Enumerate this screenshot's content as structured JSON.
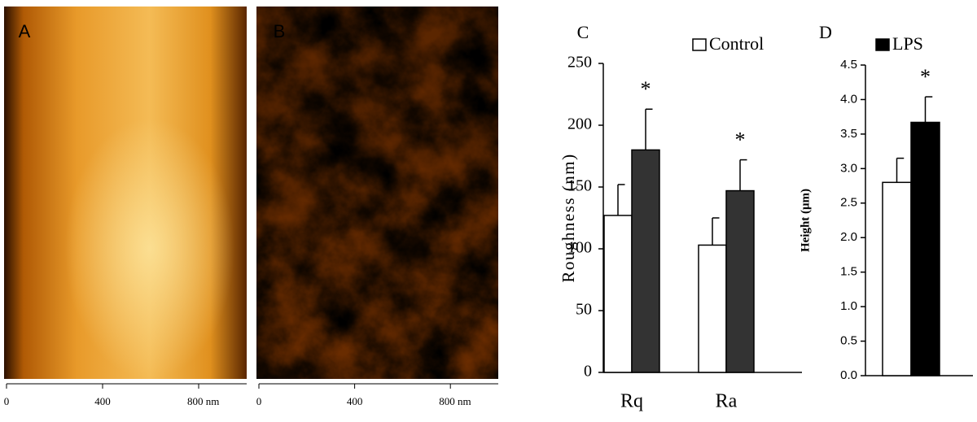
{
  "chart_data": [
    {
      "type": "image",
      "panel": "A",
      "xlim": [
        0,
        1000
      ],
      "xticks": [
        0,
        400,
        {
          "value": 800,
          "label": "800 nm"
        }
      ]
    },
    {
      "type": "image",
      "panel": "B",
      "xlim": [
        0,
        1000
      ],
      "xticks": [
        0,
        400,
        {
          "value": 800,
          "label": "800 nm"
        }
      ]
    },
    {
      "type": "bar",
      "panel": "C",
      "ylabel": "Roughness (nm)",
      "categories": [
        "Rq",
        "Ra"
      ],
      "series": [
        {
          "name": "Control",
          "color": "#ffffff",
          "values": [
            127,
            103
          ],
          "errors": [
            25,
            22
          ]
        },
        {
          "name": "LPS",
          "color": "#333333",
          "values": [
            180,
            147
          ],
          "errors": [
            33,
            25
          ],
          "significance": [
            "*",
            "*"
          ]
        }
      ],
      "ylim": [
        0,
        250
      ],
      "yticks": [
        0,
        50,
        100,
        150,
        200,
        250
      ]
    },
    {
      "type": "bar",
      "panel": "D",
      "ylabel": "Height (μm)",
      "categories": [
        null
      ],
      "series": [
        {
          "color": "#ffffff",
          "values": [
            2.8
          ],
          "errors": [
            0.35
          ]
        },
        {
          "color": "#000000",
          "values": [
            3.67
          ],
          "errors": [
            0.37
          ],
          "significance": [
            "*"
          ]
        }
      ],
      "ylim": [
        0,
        4.5
      ],
      "yticks": [
        {
          "value": 0,
          "label": "0.0"
        },
        0.5,
        {
          "value": 1,
          "label": "1.0"
        },
        1.5,
        {
          "value": 2,
          "label": "2.0"
        },
        2.5,
        {
          "value": 3,
          "label": "3.0"
        },
        3.5,
        {
          "value": 4,
          "label": "4.0"
        },
        4.5
      ]
    }
  ]
}
